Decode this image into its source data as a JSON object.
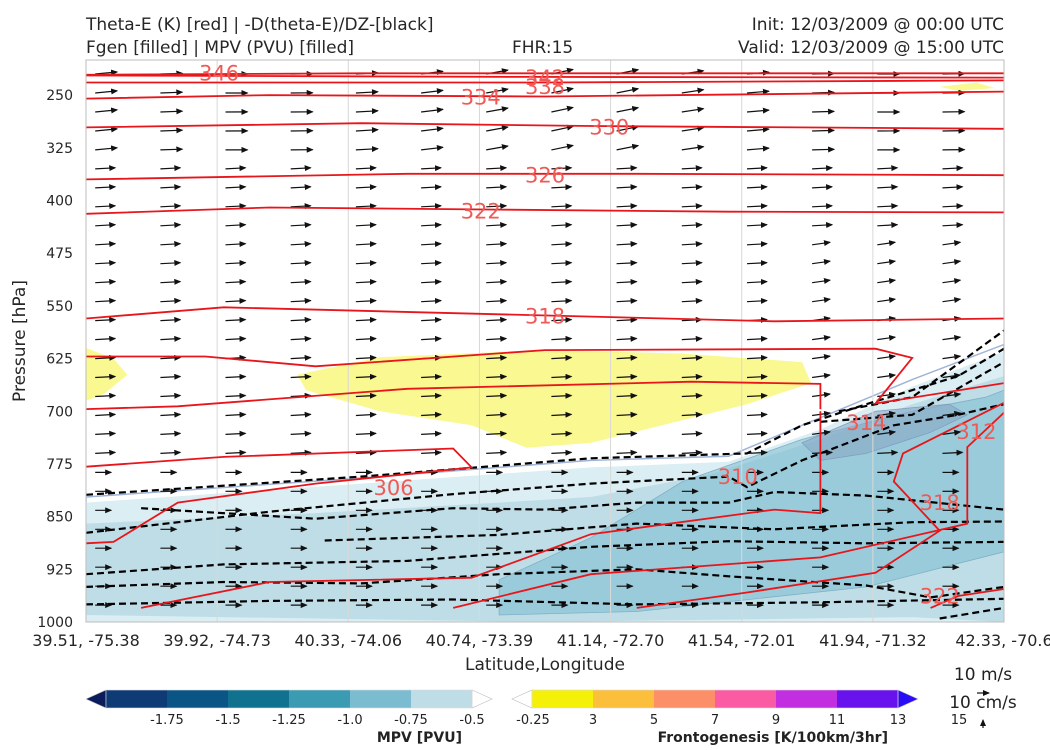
{
  "header": {
    "left_line1": "Theta-E (K) [red] | -D(theta-E)/DZ-[black]",
    "left_line2": "Fgen [filled] | MPV (PVU) [filled]",
    "center": "FHR:15",
    "right_line1": "Init: 12/03/2009 @ 00:00 UTC",
    "right_line2": "Valid: 12/03/2009 @ 15:00 UTC"
  },
  "chart_data": {
    "type": "cross-section",
    "xlabel": "Latitude,Longitude",
    "ylabel": "Pressure [hPa]",
    "x_ticks": [
      "39.51, -75.38",
      "39.92, -74.73",
      "40.33, -74.06",
      "40.74, -73.39",
      "41.14, -72.70",
      "41.54, -72.01",
      "41.94, -71.32",
      "42.33, -70.6"
    ],
    "y_ticks": [
      250,
      325,
      400,
      475,
      550,
      625,
      700,
      775,
      850,
      925,
      1000
    ],
    "ylim": [
      1000,
      200
    ],
    "theta_e_contours": [
      {
        "label": "346",
        "points": [
          [
            0,
            221
          ],
          [
            0.3,
            219
          ],
          [
            1,
            219
          ]
        ]
      },
      {
        "label": "342",
        "points": [
          [
            0,
            222
          ],
          [
            0.48,
            224
          ],
          [
            1,
            225
          ]
        ]
      },
      {
        "label": "338",
        "points": [
          [
            0,
            232
          ],
          [
            0.5,
            232
          ],
          [
            1,
            229
          ]
        ]
      },
      {
        "label": "334",
        "points": [
          [
            0,
            255
          ],
          [
            0.2,
            250
          ],
          [
            0.5,
            252
          ],
          [
            1,
            245
          ]
        ]
      },
      {
        "label": "330",
        "points": [
          [
            0,
            296
          ],
          [
            0.3,
            290
          ],
          [
            0.55,
            294
          ],
          [
            1,
            298
          ]
        ]
      },
      {
        "label": "326",
        "points": [
          [
            0,
            370
          ],
          [
            0.35,
            362
          ],
          [
            0.6,
            362
          ],
          [
            1,
            364
          ]
        ]
      },
      {
        "label": "322",
        "points": [
          [
            0,
            419
          ],
          [
            0.2,
            410
          ],
          [
            0.45,
            413
          ],
          [
            0.7,
            416
          ],
          [
            1,
            417
          ]
        ]
      },
      {
        "label": "318",
        "points": [
          [
            0,
            568
          ],
          [
            0.15,
            552
          ],
          [
            0.45,
            562
          ],
          [
            0.75,
            572
          ],
          [
            1,
            568
          ]
        ]
      },
      {
        "label": "314",
        "points": [
          [
            0,
            622
          ],
          [
            0.13,
            622
          ],
          [
            0.25,
            636
          ],
          [
            0.5,
            613
          ],
          [
            0.86,
            611
          ],
          [
            0.9,
            624
          ],
          [
            0.86,
            689
          ],
          [
            1,
            660
          ]
        ]
      },
      {
        "label": "310",
        "points": [
          [
            0,
            697
          ],
          [
            0.1,
            693
          ],
          [
            0.35,
            668
          ],
          [
            0.66,
            658
          ],
          [
            0.8,
            661
          ],
          [
            0.8,
            697
          ]
        ]
      },
      {
        "label": "306",
        "points": [
          [
            0,
            779
          ],
          [
            0.15,
            765
          ],
          [
            0.4,
            753
          ],
          [
            0.42,
            780
          ],
          [
            0.25,
            803
          ],
          [
            0.1,
            830
          ],
          [
            0.03,
            886
          ],
          [
            0,
            888
          ]
        ]
      },
      {
        "label": "310",
        "points": [
          [
            0.06,
            980
          ],
          [
            0.2,
            943
          ],
          [
            0.42,
            937
          ],
          [
            0.55,
            875
          ],
          [
            0.75,
            840
          ],
          [
            0.8,
            845
          ],
          [
            0.8,
            750
          ],
          [
            0.8,
            700
          ]
        ]
      },
      {
        "label": "314",
        "points": [
          [
            0.4,
            980
          ],
          [
            0.55,
            932
          ],
          [
            0.8,
            908
          ],
          [
            0.96,
            860
          ],
          [
            0.96,
            751
          ],
          [
            1,
            702
          ]
        ]
      },
      {
        "label": "318",
        "points": [
          [
            0.6,
            980
          ],
          [
            0.72,
            958
          ],
          [
            0.86,
            930
          ],
          [
            0.93,
            870
          ],
          [
            0.88,
            800
          ],
          [
            0.89,
            760
          ],
          [
            1,
            688
          ]
        ]
      },
      {
        "label": "322",
        "points": [
          [
            0.92,
            980
          ],
          [
            0.95,
            963
          ],
          [
            1,
            953
          ]
        ]
      }
    ],
    "contour_labels": [
      {
        "text": "346",
        "x": 0.145,
        "p": 218
      },
      {
        "text": "342",
        "x": 0.5,
        "p": 224
      },
      {
        "text": "338",
        "x": 0.5,
        "p": 237
      },
      {
        "text": "334",
        "x": 0.43,
        "p": 252
      },
      {
        "text": "330",
        "x": 0.57,
        "p": 295
      },
      {
        "text": "326",
        "x": 0.5,
        "p": 363
      },
      {
        "text": "322",
        "x": 0.43,
        "p": 414
      },
      {
        "text": "318",
        "x": 0.5,
        "p": 564
      },
      {
        "text": "314",
        "x": 0.85,
        "p": 715
      },
      {
        "text": "312",
        "x": 0.97,
        "p": 728
      },
      {
        "text": "310",
        "x": 0.71,
        "p": 792
      },
      {
        "text": "306",
        "x": 0.335,
        "p": 808
      },
      {
        "text": "318",
        "x": 0.93,
        "p": 829
      },
      {
        "text": "322",
        "x": 0.93,
        "p": 962
      }
    ],
    "stability_contours": [
      [
        [
          0,
          819
        ],
        [
          0.3,
          793
        ],
        [
          0.55,
          767
        ],
        [
          0.72,
          760
        ],
        [
          0.78,
          720
        ],
        [
          0.85,
          690
        ],
        [
          0.95,
          650
        ],
        [
          1,
          611
        ]
      ],
      [
        [
          0.82,
          700
        ],
        [
          0.9,
          680
        ],
        [
          1,
          585
        ]
      ],
      [
        [
          0.8,
          715
        ],
        [
          0.9,
          705
        ],
        [
          1,
          630
        ]
      ],
      [
        [
          0,
          873
        ],
        [
          0.2,
          843
        ],
        [
          0.4,
          818
        ],
        [
          0.55,
          803
        ],
        [
          0.7,
          793
        ],
        [
          0.72,
          808
        ],
        [
          0.78,
          770
        ],
        [
          0.88,
          720
        ],
        [
          0.95,
          705
        ],
        [
          1,
          690
        ]
      ],
      [
        [
          0.06,
          838
        ],
        [
          0.25,
          853
        ],
        [
          0.4,
          838
        ],
        [
          0.5,
          840
        ],
        [
          0.6,
          830
        ],
        [
          0.7,
          830
        ],
        [
          0.75,
          815
        ],
        [
          0.85,
          820
        ],
        [
          1,
          840
        ]
      ],
      [
        [
          0,
          932
        ],
        [
          0.15,
          918
        ],
        [
          0.35,
          913
        ],
        [
          0.55,
          893
        ],
        [
          0.7,
          885
        ],
        [
          0.85,
          888
        ],
        [
          1,
          886
        ]
      ],
      [
        [
          0.26,
          884
        ],
        [
          0.45,
          876
        ],
        [
          0.6,
          860
        ],
        [
          0.75,
          868
        ],
        [
          0.9,
          858
        ],
        [
          1,
          857
        ]
      ],
      [
        [
          0,
          950
        ],
        [
          0.15,
          943
        ],
        [
          0.3,
          945
        ],
        [
          0.45,
          932
        ],
        [
          0.6,
          925
        ],
        [
          0.7,
          935
        ],
        [
          0.85,
          948
        ],
        [
          0.92,
          965
        ],
        [
          1,
          950
        ]
      ],
      [
        [
          0,
          975
        ],
        [
          0.2,
          970
        ],
        [
          0.4,
          968
        ],
        [
          0.6,
          975
        ],
        [
          0.8,
          972
        ],
        [
          1,
          967
        ]
      ],
      [
        [
          0.93,
          995
        ],
        [
          1,
          980
        ]
      ]
    ],
    "mpv_fill_levels": [
      -0.25,
      -0.5
    ],
    "fgen_fill_levels": [
      3
    ],
    "mpv_colorbar": {
      "title": "MPV [PVU]",
      "ticks": [
        "-1.75",
        "-1.5",
        "-1.25",
        "-1.0",
        "-0.75",
        "-0.5",
        "-0.25"
      ],
      "colors": [
        "#0b1c5c",
        "#0e3b76",
        "#0a5586",
        "#11728f",
        "#3a9bb2",
        "#7bbcd0",
        "#bfdde6",
        "#ffffff"
      ]
    },
    "fgen_colorbar": {
      "title": "Frontogenesis [K/100km/3hr]",
      "ticks": [
        "3",
        "5",
        "7",
        "9",
        "11",
        "13",
        "15"
      ],
      "colors": [
        "#ffffff",
        "#f5f008",
        "#fbbf3c",
        "#fc8f68",
        "#fa5ba3",
        "#c12fe0",
        "#6812ee",
        "#2b0cf6"
      ]
    },
    "reference_vector": {
      "label1": "10 m/s",
      "label2": "10 cm/s"
    }
  }
}
